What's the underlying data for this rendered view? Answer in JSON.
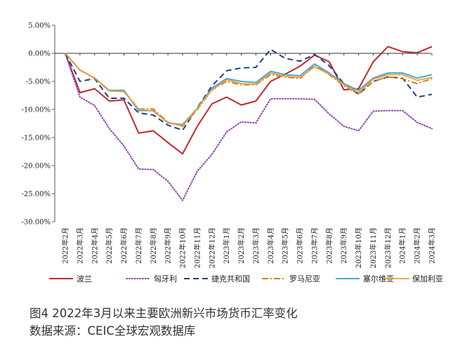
{
  "chart_data": {
    "type": "line",
    "title": "",
    "xlabel": "",
    "ylabel": "",
    "ylim": [
      -30,
      5
    ],
    "yticks": [
      5,
      0,
      -5,
      -10,
      -15,
      -20,
      -25,
      -30
    ],
    "ytick_labels": [
      "5.00%",
      "0.00%",
      "-5.00%",
      "-10.00%",
      "-15.00%",
      "-20.00%",
      "-25.00%",
      "-30.00%"
    ],
    "grid": false,
    "zero_line": true,
    "legend_position": "bottom",
    "categories": [
      "2022年2月",
      "2022年3月",
      "2022年4月",
      "2022年5月",
      "2022年6月",
      "2022年7月",
      "2022年8月",
      "2022年9月",
      "2022年10月",
      "2022年11月",
      "2022年12月",
      "2023年1月",
      "2023年2月",
      "2023年3月",
      "2023年4月",
      "2023年5月",
      "2023年6月",
      "2023年7月",
      "2023年8月",
      "2023年9月",
      "2023年10月",
      "2023年11月",
      "2023年12月",
      "2024年1月",
      "2024年2月",
      "2024年3月"
    ],
    "x_points": [
      0,
      0.5,
      1.5,
      2.5,
      3.5,
      4.5,
      5.5,
      6.5,
      7.5,
      8.5,
      9.5,
      10.5,
      11.5,
      12.5,
      13.5,
      14.5,
      15.5,
      16.5,
      17.5,
      18.5,
      19.5,
      20.5,
      21.5,
      22.5,
      23.5,
      24.5,
      25.5,
      26.5,
      27.5,
      28.5,
      29.5,
      30.5,
      31.5,
      32.5,
      33.5,
      34.5,
      35.5,
      36.5,
      37.5,
      38.5,
      39.5,
      40.5,
      41.5,
      42.5,
      43.5,
      44.5,
      45.5,
      46.5,
      47.5,
      48.5,
      49.5
    ],
    "series": [
      {
        "name": "波兰",
        "color": "#c0282d",
        "dash": "solid",
        "values": [
          0,
          -7.0,
          -6.3,
          -8.5,
          -8.3,
          -14.2,
          -13.8,
          -15.9,
          -17.9,
          -13.0,
          -9.0,
          -7.8,
          -9.2,
          -8.5,
          -5.0,
          -3.7,
          -2.3,
          -0.3,
          -1.5,
          -6.5,
          -6.3,
          -1.5,
          1.2,
          0.3,
          0.1,
          1.2
        ],
        "x_index": "month"
      },
      {
        "name": "匈牙利",
        "color": "#8e44ad",
        "dash": "dotted",
        "values": [
          0,
          -7.8,
          -9.3,
          -13.4,
          -16.5,
          -20.6,
          -20.7,
          -22.8,
          -26.2,
          -21.0,
          -18.0,
          -14.0,
          -12.2,
          -12.4,
          -8.1,
          -8.1,
          -8.1,
          -8.2,
          -10.8,
          -13.0,
          -13.8,
          -10.3,
          -10.2,
          -10.2,
          -12.3,
          -13.4
        ]
      },
      {
        "name": "捷克共和国",
        "color": "#1f3d8a",
        "dash": "dashed",
        "values": [
          0,
          -5.0,
          -4.5,
          -8.0,
          -8.0,
          -10.6,
          -11.0,
          -12.8,
          -13.7,
          -9.7,
          -5.8,
          -3.1,
          -2.6,
          -2.5,
          0.7,
          -0.9,
          -1.4,
          -0.2,
          -2.2,
          -5.4,
          -7.3,
          -5.0,
          -4.2,
          -4.4,
          -7.8,
          -7.3
        ]
      },
      {
        "name": "罗马尼亚",
        "color": "#e07b1a",
        "dash": "dashdot",
        "values": [
          0,
          -3.0,
          -4.4,
          -6.7,
          -6.8,
          -9.9,
          -9.9,
          -12.3,
          -13.0,
          -10.0,
          -6.5,
          -5.0,
          -5.6,
          -5.6,
          -3.8,
          -4.2,
          -4.5,
          -2.1,
          -3.8,
          -5.8,
          -7.2,
          -5.0,
          -4.2,
          -4.5,
          -5.4,
          -4.5
        ]
      },
      {
        "name": "塞尔维亚",
        "color": "#4aa8d8",
        "dash": "solid",
        "values": [
          0,
          -3.0,
          -4.4,
          -6.6,
          -6.6,
          -10.2,
          -10.2,
          -12.4,
          -12.7,
          -9.8,
          -6.2,
          -4.5,
          -5.0,
          -5.2,
          -3.2,
          -3.8,
          -4.0,
          -1.9,
          -3.5,
          -5.4,
          -6.6,
          -4.4,
          -3.5,
          -3.5,
          -4.4,
          -3.8
        ]
      },
      {
        "name": "保加利亚",
        "color": "#e6a03a",
        "dash": "finedot",
        "values": [
          0,
          -3.0,
          -4.4,
          -6.7,
          -6.8,
          -9.9,
          -10.3,
          -12.3,
          -12.9,
          -9.8,
          -6.5,
          -4.7,
          -5.4,
          -5.5,
          -3.5,
          -4.1,
          -4.3,
          -2.4,
          -3.7,
          -5.6,
          -7.0,
          -4.6,
          -3.8,
          -3.8,
          -4.8,
          -4.3
        ]
      }
    ]
  },
  "caption": {
    "figure": "图4   2022年3月以来主要欧洲新兴市场货币汇率变化",
    "source": "数据来源：CEIC全球宏观数据库"
  }
}
